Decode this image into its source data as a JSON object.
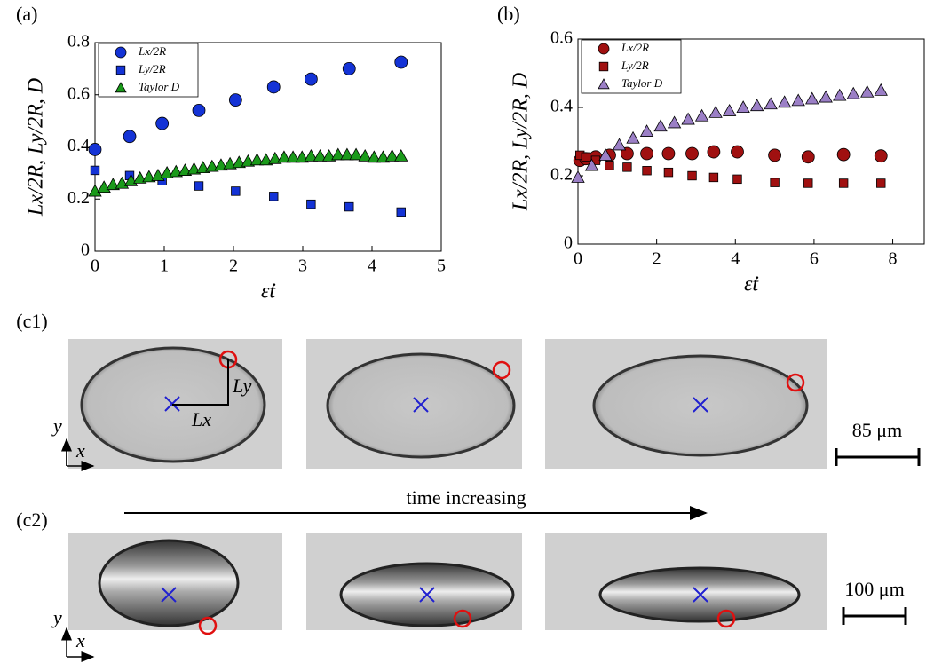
{
  "chart_data": [
    {
      "type": "scatter",
      "panel": "(a)",
      "xlabel": "ε̇t",
      "ylabel": "Lx/2R, Ly/2R, D",
      "xlim": [
        0,
        5
      ],
      "ylim": [
        0,
        0.8
      ],
      "xticks": [
        0,
        1,
        2,
        3,
        4,
        5
      ],
      "yticks": [
        0,
        0.2,
        0.4,
        0.6,
        0.8
      ],
      "legend": "upper left",
      "series": [
        {
          "name": "Lx/2R",
          "color": "#1433d6",
          "marker": "circle",
          "x": [
            0,
            0.5,
            0.97,
            1.5,
            2.03,
            2.58,
            3.12,
            3.67,
            4.42
          ],
          "values": [
            0.39,
            0.44,
            0.49,
            0.54,
            0.58,
            0.63,
            0.66,
            0.7,
            0.725
          ]
        },
        {
          "name": "Ly/2R",
          "color": "#1433d6",
          "marker": "square",
          "x": [
            0,
            0.5,
            0.97,
            1.5,
            2.03,
            2.58,
            3.12,
            3.67,
            4.42
          ],
          "values": [
            0.31,
            0.29,
            0.27,
            0.25,
            0.23,
            0.21,
            0.18,
            0.17,
            0.15
          ]
        },
        {
          "name": "Taylor D",
          "color": "#1a9a1a",
          "marker": "triangle",
          "x": [
            0,
            0.13,
            0.26,
            0.39,
            0.52,
            0.65,
            0.78,
            0.91,
            1.04,
            1.17,
            1.3,
            1.43,
            1.56,
            1.69,
            1.82,
            1.95,
            2.08,
            2.21,
            2.34,
            2.47,
            2.6,
            2.73,
            2.86,
            2.99,
            3.12,
            3.25,
            3.38,
            3.51,
            3.64,
            3.77,
            3.9,
            4.03,
            4.16,
            4.29,
            4.42
          ],
          "values": [
            0.23,
            0.245,
            0.255,
            0.26,
            0.27,
            0.28,
            0.285,
            0.29,
            0.3,
            0.305,
            0.31,
            0.315,
            0.32,
            0.325,
            0.33,
            0.335,
            0.34,
            0.345,
            0.35,
            0.35,
            0.355,
            0.36,
            0.36,
            0.36,
            0.365,
            0.365,
            0.365,
            0.37,
            0.37,
            0.37,
            0.365,
            0.36,
            0.36,
            0.365,
            0.365
          ]
        }
      ]
    },
    {
      "type": "scatter",
      "panel": "(b)",
      "xlabel": "ε̇t",
      "ylabel": "Lx/2R, Ly/2R, D",
      "xlim": [
        0,
        8.8
      ],
      "ylim": [
        0,
        0.6
      ],
      "xticks": [
        0,
        2,
        4,
        6,
        8
      ],
      "yticks": [
        0,
        0.2,
        0.4,
        0.6
      ],
      "legend": "upper left",
      "series": [
        {
          "name": "Lx/2R",
          "color": "#a01010",
          "marker": "circle",
          "x": [
            0.05,
            0.2,
            0.45,
            0.8,
            1.25,
            1.75,
            2.3,
            2.9,
            3.45,
            4.05,
            5.0,
            5.85,
            6.75,
            7.7
          ],
          "values": [
            0.245,
            0.25,
            0.255,
            0.26,
            0.265,
            0.265,
            0.265,
            0.265,
            0.27,
            0.27,
            0.26,
            0.255,
            0.262,
            0.258
          ]
        },
        {
          "name": "Ly/2R",
          "color": "#a01010",
          "marker": "square",
          "x": [
            0.05,
            0.2,
            0.45,
            0.8,
            1.25,
            1.75,
            2.3,
            2.9,
            3.45,
            4.05,
            5.0,
            5.85,
            6.75,
            7.7
          ],
          "values": [
            0.26,
            0.255,
            0.245,
            0.23,
            0.225,
            0.215,
            0.21,
            0.2,
            0.195,
            0.19,
            0.18,
            0.178,
            0.178,
            0.178
          ]
        },
        {
          "name": "Taylor D",
          "color": "#9b7fc6",
          "marker": "triangle",
          "x": [
            0,
            0.35,
            0.7,
            1.05,
            1.4,
            1.75,
            2.1,
            2.45,
            2.8,
            3.15,
            3.5,
            3.85,
            4.2,
            4.55,
            4.9,
            5.25,
            5.6,
            5.95,
            6.3,
            6.65,
            7.0,
            7.35,
            7.7
          ],
          "values": [
            0.195,
            0.23,
            0.26,
            0.29,
            0.31,
            0.33,
            0.345,
            0.355,
            0.365,
            0.375,
            0.385,
            0.39,
            0.4,
            0.405,
            0.41,
            0.415,
            0.42,
            0.425,
            0.43,
            0.435,
            0.44,
            0.445,
            0.45
          ]
        }
      ]
    }
  ],
  "images": {
    "row1_label": "(c1)",
    "row2_label": "(c2)",
    "ly_label": "Ly",
    "lx_label": "Lx",
    "axis_y": "y",
    "axis_x": "x",
    "scale1": "85 μm",
    "scale2": "100 μm",
    "arrow_label": "time increasing"
  }
}
